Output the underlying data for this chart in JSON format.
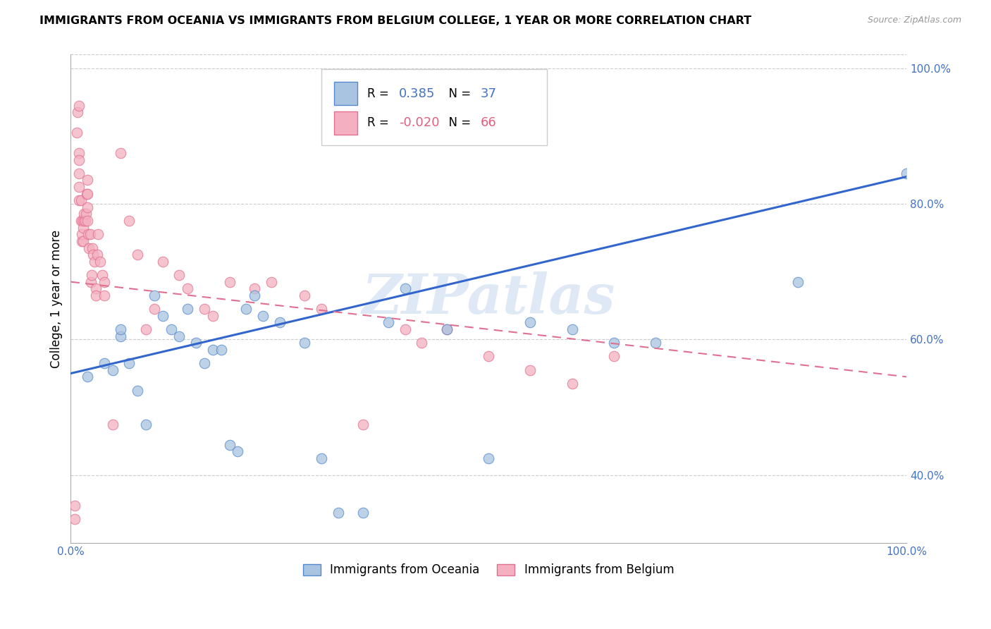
{
  "title": "IMMIGRANTS FROM OCEANIA VS IMMIGRANTS FROM BELGIUM COLLEGE, 1 YEAR OR MORE CORRELATION CHART",
  "source": "Source: ZipAtlas.com",
  "ylabel": "College, 1 year or more",
  "xlim": [
    0.0,
    1.0
  ],
  "ylim": [
    0.3,
    1.02
  ],
  "right_yticks": [
    0.4,
    0.6,
    0.8,
    1.0
  ],
  "right_yticklabels": [
    "40.0%",
    "60.0%",
    "80.0%",
    "100.0%"
  ],
  "xtick_positions": [
    0.0,
    0.2,
    0.4,
    0.6,
    0.8,
    1.0
  ],
  "xtick_labels": [
    "0.0%",
    "",
    "",
    "",
    "",
    "100.0%"
  ],
  "blue_R": 0.385,
  "blue_N": 37,
  "pink_R": -0.02,
  "pink_N": 66,
  "blue_scatter_color": "#a8c4e0",
  "blue_edge_color": "#5588cc",
  "pink_scatter_color": "#f4b0c0",
  "pink_edge_color": "#e07090",
  "blue_line_color": "#3366cc",
  "pink_line_color": "#e07090",
  "watermark": "ZIPatlas",
  "blue_scatter_x": [
    0.02,
    0.04,
    0.05,
    0.06,
    0.06,
    0.07,
    0.08,
    0.09,
    0.1,
    0.11,
    0.12,
    0.13,
    0.14,
    0.15,
    0.16,
    0.17,
    0.18,
    0.19,
    0.2,
    0.21,
    0.22,
    0.23,
    0.25,
    0.28,
    0.3,
    0.32,
    0.35,
    0.38,
    0.4,
    0.45,
    0.5,
    0.55,
    0.6,
    0.65,
    0.7,
    0.87,
    1.0
  ],
  "blue_scatter_y": [
    0.545,
    0.565,
    0.555,
    0.605,
    0.615,
    0.565,
    0.525,
    0.475,
    0.665,
    0.635,
    0.615,
    0.605,
    0.645,
    0.595,
    0.565,
    0.585,
    0.585,
    0.445,
    0.435,
    0.645,
    0.665,
    0.635,
    0.625,
    0.595,
    0.425,
    0.345,
    0.345,
    0.625,
    0.675,
    0.615,
    0.425,
    0.625,
    0.615,
    0.595,
    0.595,
    0.685,
    0.845
  ],
  "pink_scatter_x": [
    0.005,
    0.005,
    0.007,
    0.008,
    0.01,
    0.01,
    0.01,
    0.01,
    0.01,
    0.01,
    0.012,
    0.012,
    0.013,
    0.013,
    0.014,
    0.015,
    0.015,
    0.016,
    0.016,
    0.017,
    0.018,
    0.019,
    0.02,
    0.02,
    0.02,
    0.02,
    0.021,
    0.022,
    0.023,
    0.024,
    0.025,
    0.026,
    0.027,
    0.028,
    0.03,
    0.03,
    0.032,
    0.033,
    0.035,
    0.038,
    0.04,
    0.04,
    0.05,
    0.06,
    0.07,
    0.08,
    0.09,
    0.1,
    0.11,
    0.13,
    0.14,
    0.16,
    0.17,
    0.19,
    0.22,
    0.24,
    0.28,
    0.3,
    0.35,
    0.4,
    0.42,
    0.45,
    0.5,
    0.55,
    0.6,
    0.65
  ],
  "pink_scatter_y": [
    0.335,
    0.355,
    0.905,
    0.935,
    0.945,
    0.875,
    0.865,
    0.845,
    0.825,
    0.805,
    0.805,
    0.775,
    0.745,
    0.755,
    0.775,
    0.745,
    0.765,
    0.775,
    0.785,
    0.775,
    0.785,
    0.815,
    0.775,
    0.795,
    0.815,
    0.835,
    0.755,
    0.735,
    0.755,
    0.685,
    0.695,
    0.735,
    0.725,
    0.715,
    0.675,
    0.665,
    0.725,
    0.755,
    0.715,
    0.695,
    0.665,
    0.685,
    0.475,
    0.875,
    0.775,
    0.725,
    0.615,
    0.645,
    0.715,
    0.695,
    0.675,
    0.645,
    0.635,
    0.685,
    0.675,
    0.685,
    0.665,
    0.645,
    0.475,
    0.615,
    0.595,
    0.615,
    0.575,
    0.555,
    0.535,
    0.575
  ],
  "blue_trend_x": [
    0.0,
    1.0
  ],
  "blue_trend_y": [
    0.55,
    0.84
  ],
  "pink_trend_x": [
    0.0,
    1.0
  ],
  "pink_trend_y": [
    0.685,
    0.545
  ],
  "figsize": [
    14.06,
    8.92
  ],
  "dpi": 100
}
